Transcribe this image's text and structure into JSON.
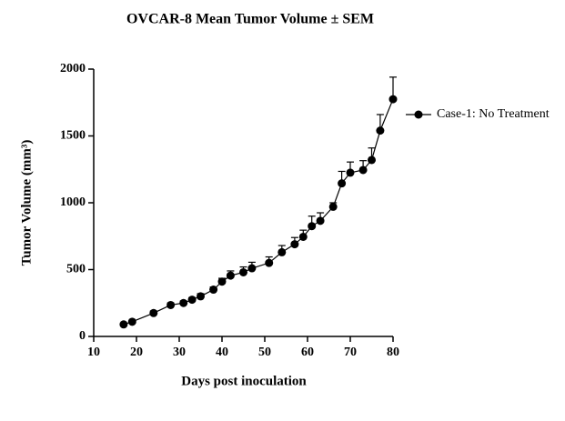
{
  "chart_data": {
    "type": "line",
    "title": "OVCAR-8 Mean Tumor Volume ± SEM",
    "xlabel": "Days post inoculation",
    "ylabel": "Tumor Volume (mm³)",
    "x": [
      17,
      19,
      24,
      28,
      31,
      33,
      35,
      38,
      40,
      42,
      45,
      47,
      51,
      54,
      57,
      59,
      61,
      63,
      66,
      68,
      70,
      73,
      75,
      77,
      80
    ],
    "series": [
      {
        "name": "Case-1: No Treatment",
        "color": "#000000",
        "values": [
          90,
          110,
          175,
          235,
          250,
          275,
          300,
          350,
          410,
          455,
          480,
          510,
          550,
          630,
          690,
          745,
          825,
          865,
          970,
          1145,
          1225,
          1245,
          1320,
          1540,
          1775
        ],
        "errors": [
          10,
          10,
          15,
          15,
          15,
          15,
          20,
          20,
          25,
          35,
          40,
          45,
          45,
          50,
          50,
          50,
          75,
          60,
          30,
          90,
          80,
          70,
          90,
          120,
          165
        ]
      }
    ],
    "xlim": [
      10,
      80
    ],
    "xticks": [
      10,
      20,
      30,
      40,
      50,
      60,
      70,
      80
    ],
    "ylim": [
      0,
      2000
    ],
    "yticks": [
      0,
      500,
      1000,
      1500,
      2000
    ],
    "legend": "right"
  }
}
